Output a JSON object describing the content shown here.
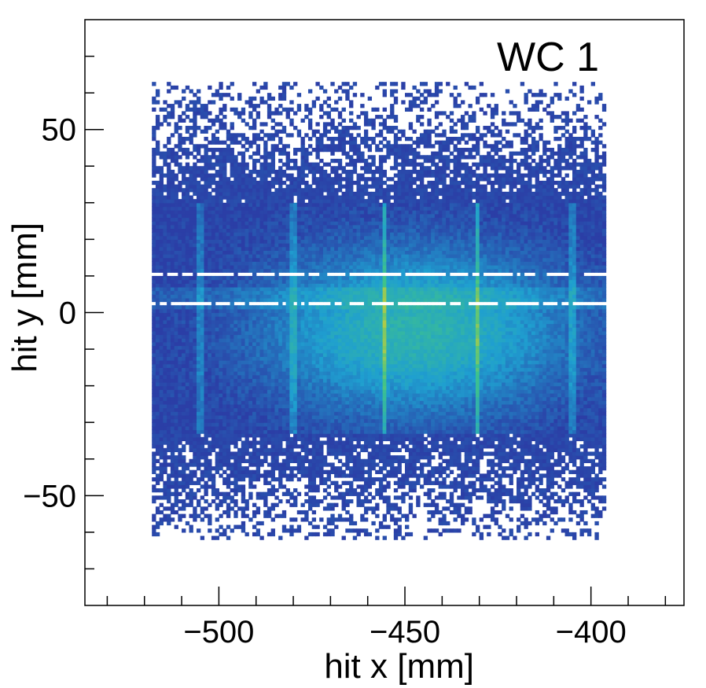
{
  "chart_data": {
    "type": "heatmap",
    "title": "WC 1",
    "xlabel": "hit x [mm]",
    "ylabel": "hit y [mm]",
    "xlim": [
      -536,
      -375
    ],
    "ylim": [
      -80,
      80
    ],
    "xticks": [
      -500,
      -450,
      -400
    ],
    "yticks": [
      -50,
      0,
      50
    ],
    "xtick_labels": [
      "−500",
      "−450",
      "−400"
    ],
    "ytick_labels": [
      "−50",
      "0",
      "50"
    ],
    "grid": false,
    "colorbar": false,
    "colormap": "viridis-like (dark blue → cyan → green → yellow)",
    "bin_width_mm": 1.0,
    "occupied_region": {
      "x": [
        -518,
        -396
      ],
      "y": [
        -62,
        63
      ]
    },
    "dense_band_y": [
      -33,
      30
    ],
    "hot_core_center": {
      "x": -447,
      "y": -5
    },
    "hot_vertical_lines_x": [
      -480,
      -455.5,
      -430.5,
      -405,
      -505
    ],
    "dead_horizontal_gaps_y": [
      2.2,
      10.5
    ],
    "colors": {
      "low": "#2b3ea6",
      "mid": "#1f9fd0",
      "high": "#3fc38a",
      "peak": "#f0d020",
      "frame": "#000000",
      "background": "#ffffff"
    }
  }
}
